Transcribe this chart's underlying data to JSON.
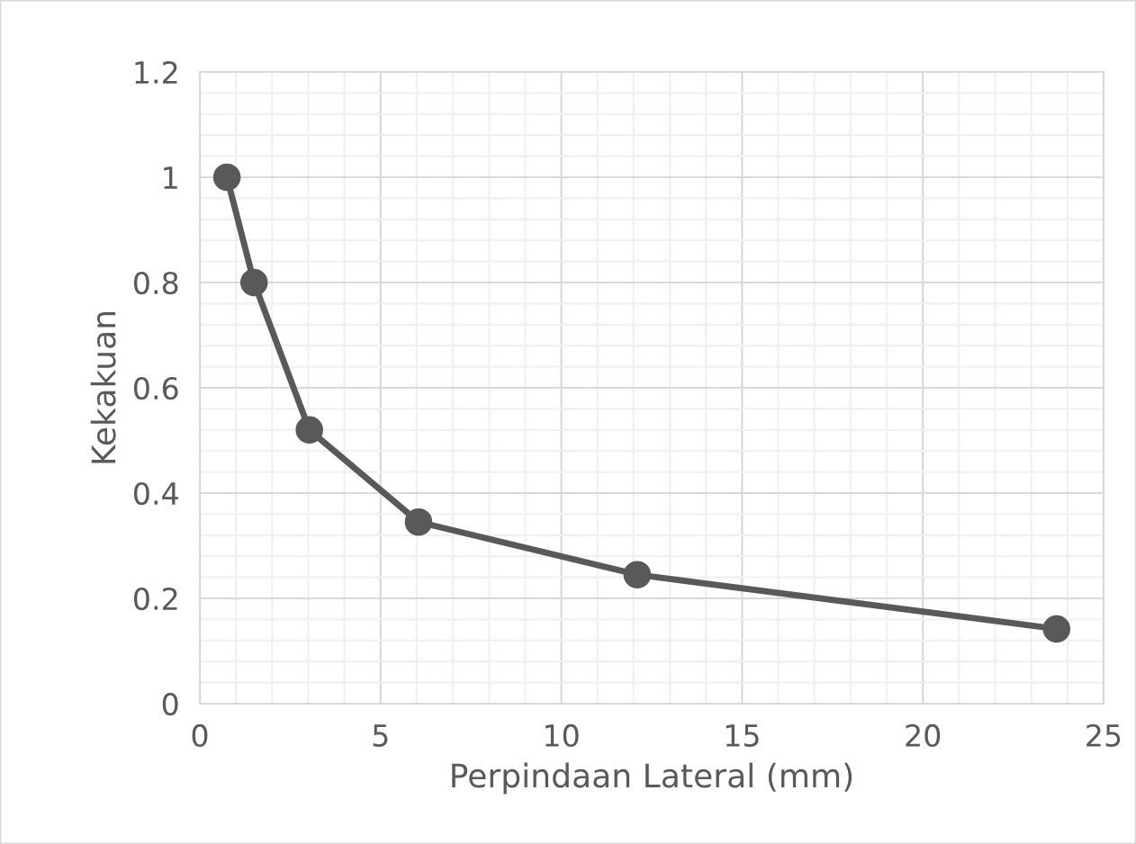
{
  "chart_data": {
    "type": "line",
    "xlabel": "Perpindaan Lateral (mm)",
    "ylabel": "Kekakuan",
    "x": [
      0.75,
      1.5,
      3.03,
      6.05,
      12.1,
      23.7
    ],
    "series": [
      {
        "color": "#595959",
        "values": [
          1.0,
          0.8,
          0.52,
          0.345,
          0.245,
          0.142
        ]
      }
    ],
    "xlim": [
      0,
      25
    ],
    "xticks": [
      0,
      5,
      10,
      15,
      20,
      25
    ],
    "ylim": [
      0,
      1.2
    ],
    "yticks": [
      0,
      0.2,
      0.4,
      0.6,
      0.8,
      1,
      1.2
    ],
    "grid": true,
    "marker": "circle",
    "line_style": "solid"
  }
}
